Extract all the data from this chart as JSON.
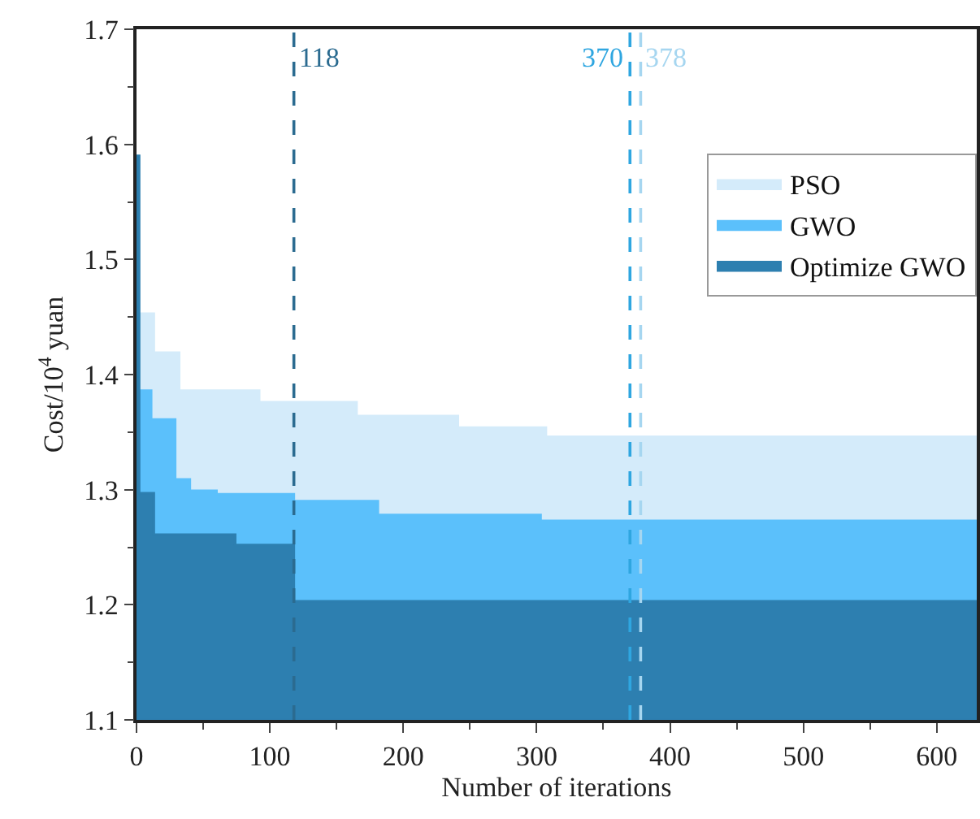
{
  "chart_data": {
    "type": "area",
    "xlabel": "Number of iterations",
    "ylabel": "Cost/10$^{4}$ yuan",
    "xlim": [
      0,
      630
    ],
    "xticks": [
      0,
      100,
      200,
      300,
      400,
      500,
      600
    ],
    "ylim": [
      1.1,
      1.7
    ],
    "yticks": [
      1.1,
      1.2,
      1.3,
      1.4,
      1.5,
      1.6,
      1.7
    ],
    "grid": false,
    "legend": "top right",
    "series": [
      {
        "name": "PSO",
        "color": "#d4ebfa",
        "x": [
          2,
          2,
          13,
          13,
          32,
          32,
          92,
          92,
          165,
          165,
          241,
          241,
          307,
          307,
          630
        ],
        "values": [
          1.1,
          1.453,
          1.453,
          1.419,
          1.419,
          1.386,
          1.386,
          1.376,
          1.376,
          1.364,
          1.364,
          1.354,
          1.354,
          1.346,
          1.346
        ]
      },
      {
        "name": "GWO",
        "color": "#5bc0fb",
        "x": [
          2,
          2,
          11,
          11,
          29,
          29,
          40,
          40,
          60,
          60,
          118,
          118,
          181,
          181,
          303,
          303,
          630
        ],
        "values": [
          1.1,
          1.386,
          1.386,
          1.361,
          1.361,
          1.309,
          1.309,
          1.299,
          1.299,
          1.296,
          1.296,
          1.29,
          1.29,
          1.278,
          1.278,
          1.273,
          1.273
        ]
      },
      {
        "name": "Optimize GWO",
        "color": "#2d7fb0",
        "x": [
          0,
          2,
          2,
          13,
          13,
          74,
          74,
          118,
          118,
          630
        ],
        "values": [
          1.59,
          1.59,
          1.297,
          1.297,
          1.261,
          1.261,
          1.252,
          1.252,
          1.203,
          1.203
        ]
      }
    ],
    "ref_lines": [
      {
        "axis": "x",
        "value": 118,
        "label": "118",
        "color": "#2b6b90",
        "line_style": "dashed"
      },
      {
        "axis": "x",
        "value": 370,
        "label": "370",
        "color": "#2fa6e0",
        "line_style": "dashed"
      },
      {
        "axis": "x",
        "value": 378,
        "label": "378",
        "color": "#a6d6f0",
        "line_style": "dashed"
      }
    ]
  }
}
